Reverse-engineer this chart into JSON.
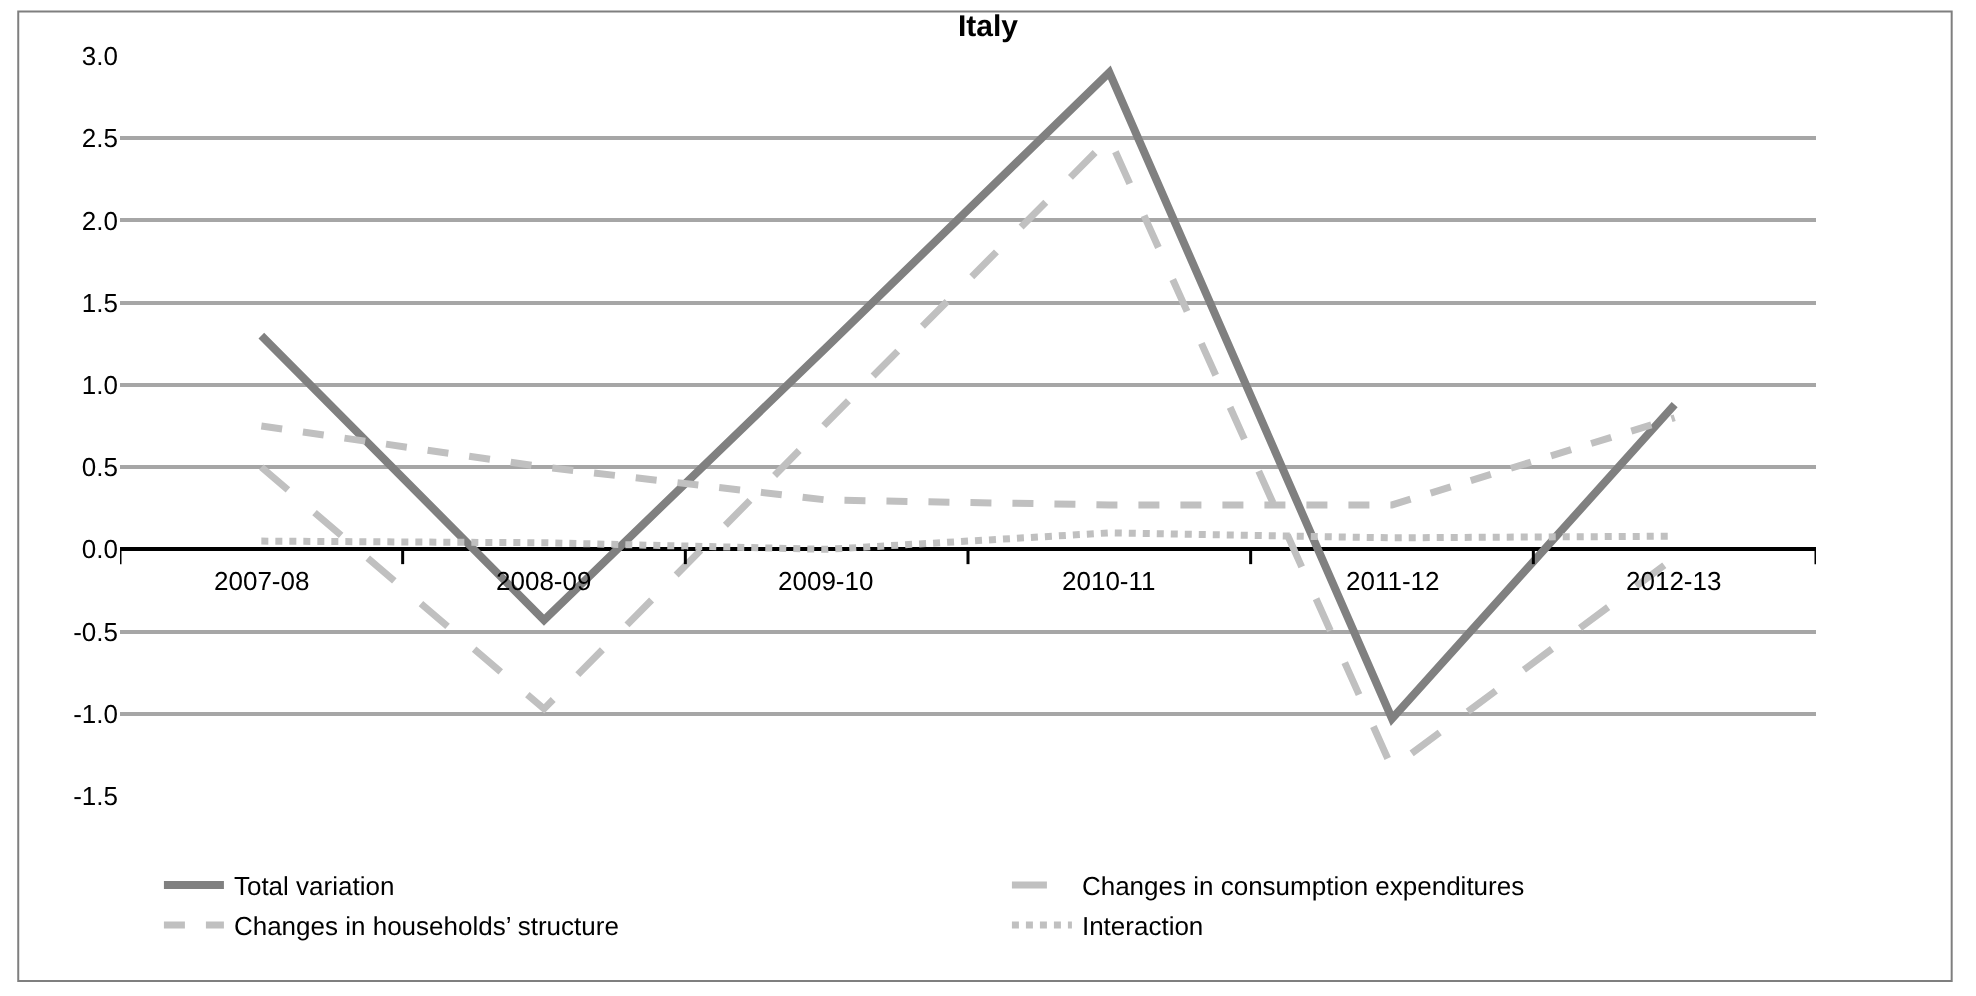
{
  "chart_data": {
    "type": "line",
    "title": "Italy",
    "categories": [
      "2007-08",
      "2008-09",
      "2009-10",
      "2010-11",
      "2011-12",
      "2012-13"
    ],
    "series": [
      {
        "name": "Total variation",
        "color": "#808080",
        "line_style": "solid",
        "values": [
          1.3,
          -0.43,
          1.23,
          2.9,
          -1.03,
          0.88
        ]
      },
      {
        "name": "Changes in consumption expenditures",
        "color": "#c0c0c0",
        "line_style": "dashed",
        "values": [
          0.5,
          -0.97,
          0.77,
          2.5,
          -1.33,
          -0.05
        ]
      },
      {
        "name": "Changes in households’ structure",
        "color": "#c0c0c0",
        "line_style": "dashed",
        "values": [
          0.75,
          0.5,
          0.3,
          0.27,
          0.27,
          0.8
        ]
      },
      {
        "name": "Interaction",
        "color": "#c0c0c0",
        "line_style": "dotted",
        "values": [
          0.05,
          0.04,
          0.0,
          0.1,
          0.07,
          0.08
        ]
      }
    ],
    "ylim": [
      -1.5,
      3.0
    ],
    "yticks": [
      {
        "value": -1.5,
        "label": "-1.5"
      },
      {
        "value": -1.0,
        "label": "-1.0"
      },
      {
        "value": -0.5,
        "label": "-0.5"
      },
      {
        "value": 0,
        "label": "0.0"
      },
      {
        "value": 0.5,
        "label": "0.5"
      },
      {
        "value": 1.0,
        "label": "1.0"
      },
      {
        "value": 1.5,
        "label": "1.5"
      },
      {
        "value": 2.0,
        "label": "2.0"
      },
      {
        "value": 2.5,
        "label": "2.5"
      },
      {
        "value": 3.0,
        "label": "3.0"
      }
    ],
    "grid": "y",
    "legend": "bottom",
    "marker": "none"
  }
}
